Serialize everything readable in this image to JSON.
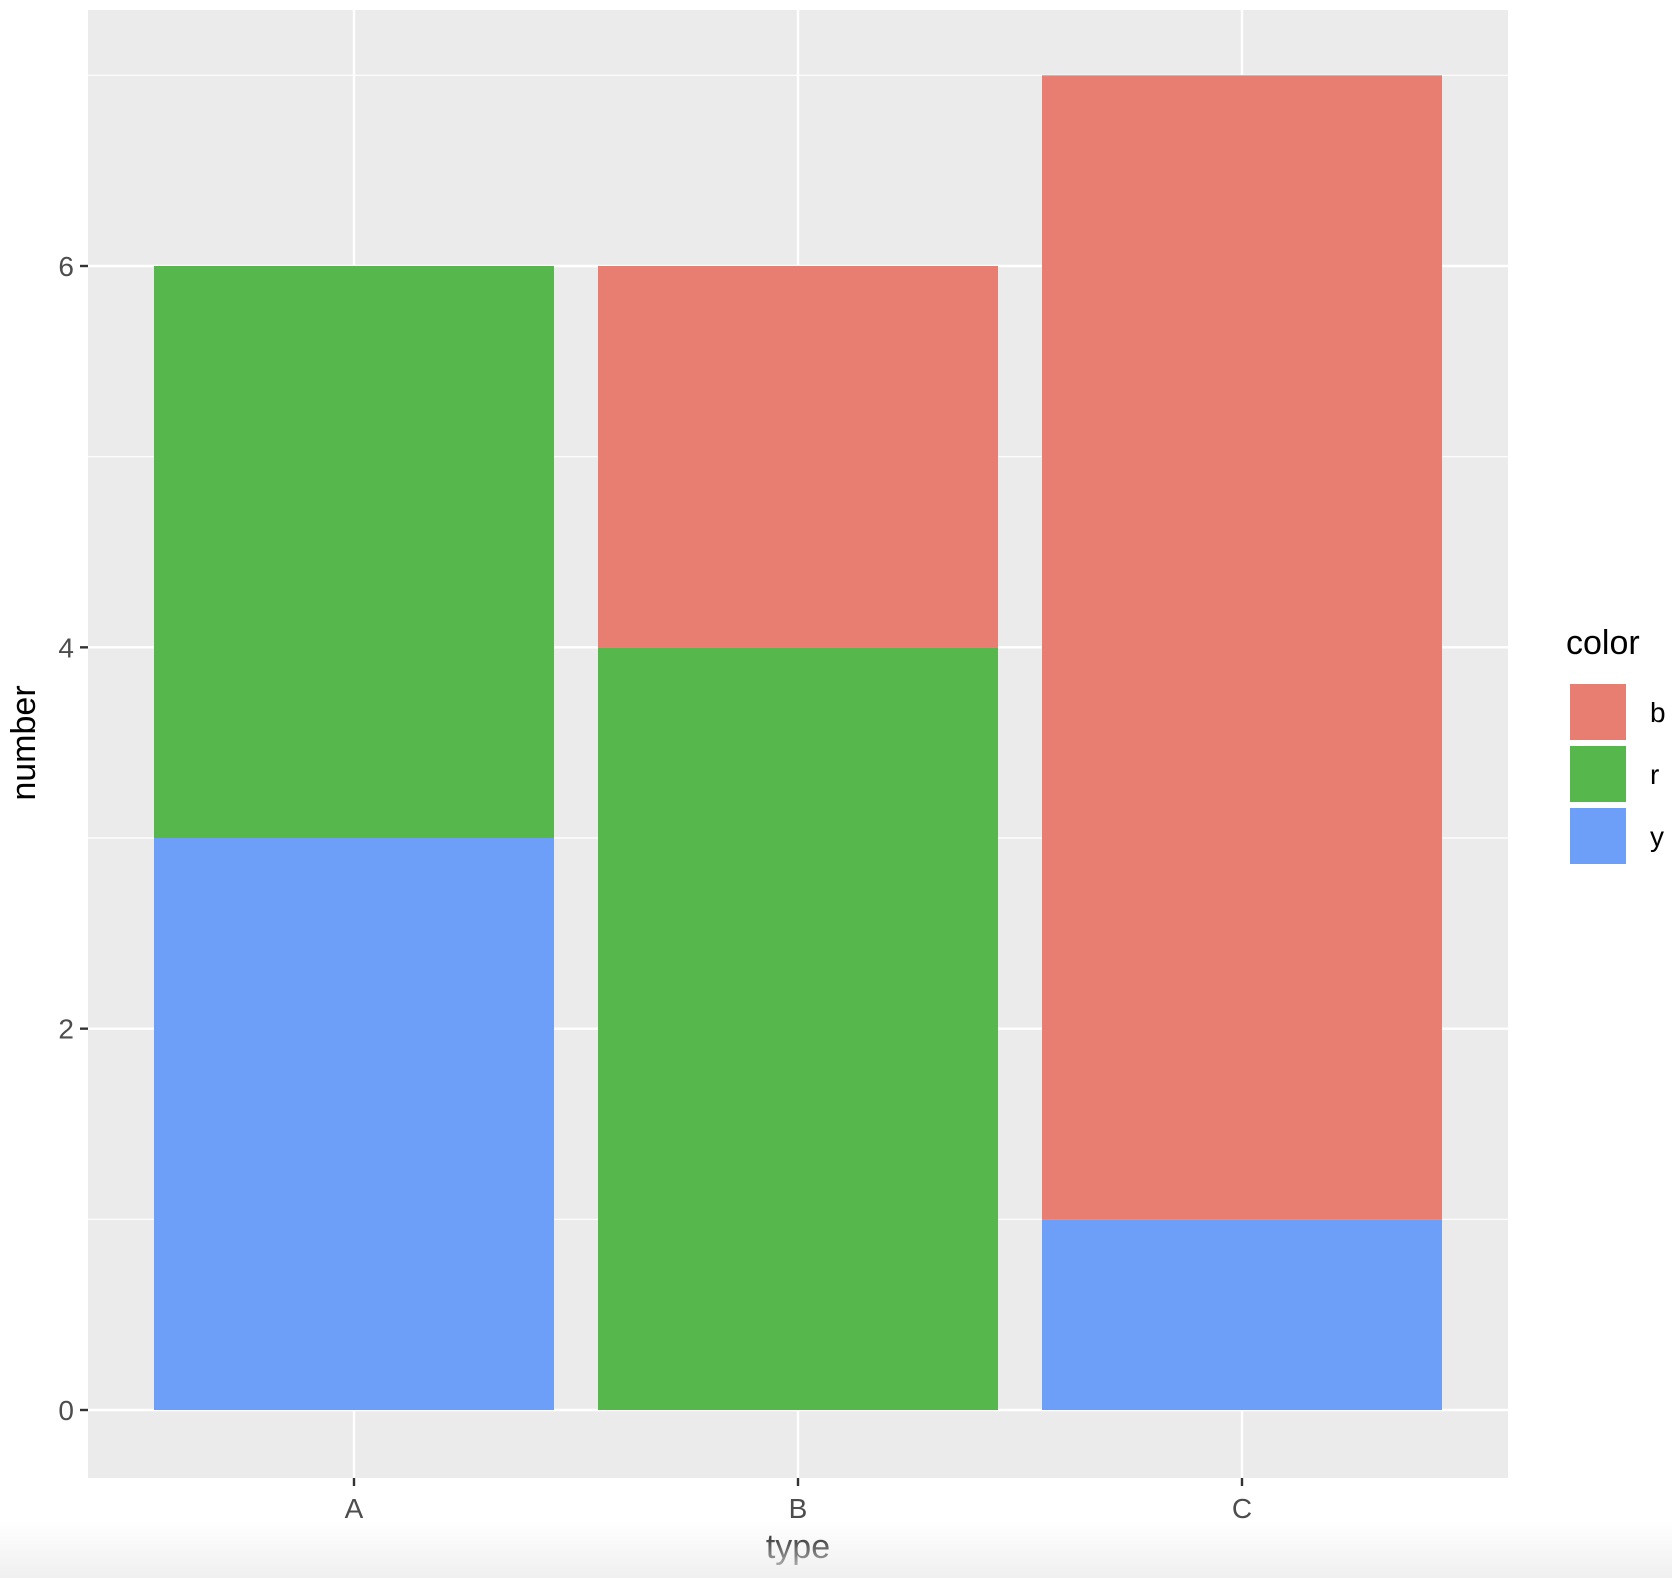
{
  "chart_data": {
    "type": "bar",
    "stacked": true,
    "categories": [
      "A",
      "B",
      "C"
    ],
    "series": [
      {
        "name": "b",
        "color": "#E87E72",
        "values": [
          0,
          2,
          6
        ]
      },
      {
        "name": "r",
        "color": "#56B74D",
        "values": [
          3,
          4,
          0
        ]
      },
      {
        "name": "y",
        "color": "#6D9EF8",
        "values": [
          3,
          0,
          1
        ]
      }
    ],
    "stack_order_bottom_to_top": [
      "y",
      "r",
      "b"
    ],
    "xlabel": "type",
    "ylabel": "number",
    "ylim": [
      -0.35,
      7.35
    ],
    "yticks": [
      0,
      2,
      4,
      6
    ],
    "ytick_labels": [
      "0",
      "2",
      "4",
      "6"
    ],
    "grid": true,
    "legend": {
      "title": "color",
      "placement": "right",
      "entries": [
        "b",
        "r",
        "y"
      ]
    },
    "colors": {
      "panel_background": "#EBEBEB",
      "grid": "#FFFFFF"
    }
  }
}
